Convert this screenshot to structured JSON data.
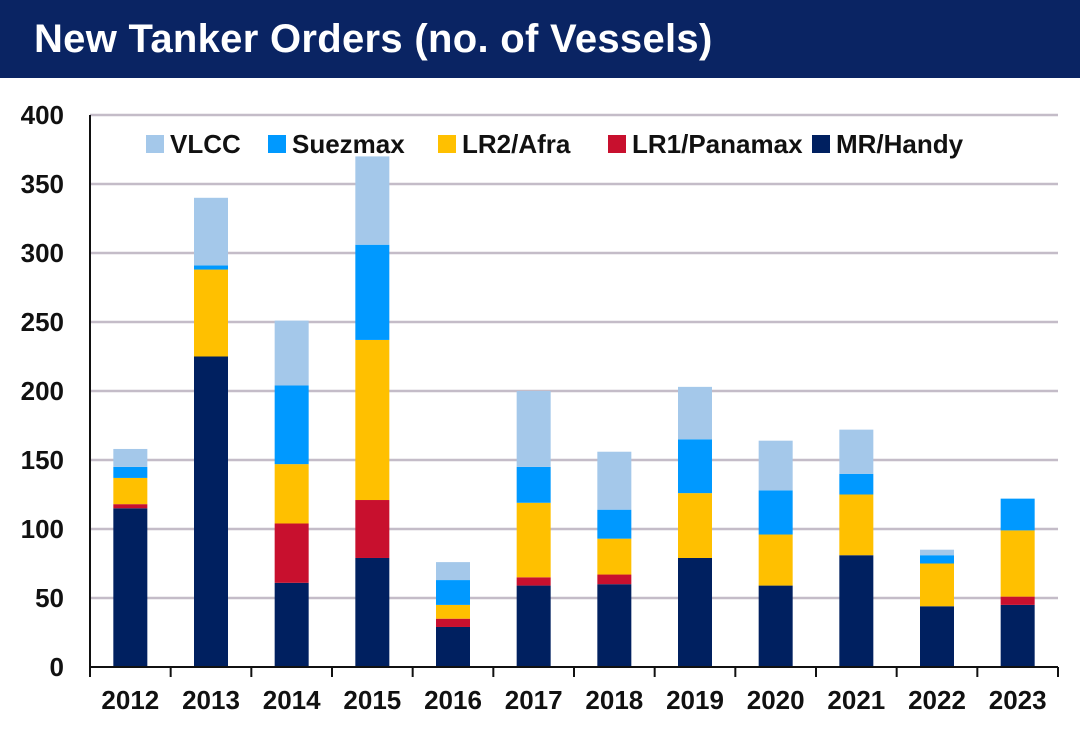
{
  "header": {
    "title": "New Tanker Orders (no. of Vessels)"
  },
  "colors": {
    "title_bg": "#0a2463",
    "gridline": "#c4bcc8",
    "axis": "#111111"
  },
  "chart_data": {
    "type": "bar",
    "stacked": true,
    "title": "New Tanker Orders (no. of Vessels)",
    "xlabel": "",
    "ylabel": "",
    "ylim": [
      0,
      400
    ],
    "yticks": [
      0,
      50,
      100,
      150,
      200,
      250,
      300,
      350,
      400
    ],
    "grid": true,
    "legend_position": "top",
    "categories": [
      "2012",
      "2013",
      "2014",
      "2015",
      "2016",
      "2017",
      "2018",
      "2019",
      "2020",
      "2021",
      "2022",
      "2023"
    ],
    "series": [
      {
        "name": "MR/Handy",
        "color": "#002060",
        "values": [
          115,
          225,
          61,
          79,
          29,
          59,
          60,
          79,
          59,
          81,
          44,
          45
        ]
      },
      {
        "name": "LR1/Panamax",
        "color": "#c8102e",
        "values": [
          3,
          0,
          43,
          42,
          6,
          6,
          7,
          0,
          0,
          0,
          0,
          6
        ]
      },
      {
        "name": "LR2/Afra",
        "color": "#ffc000",
        "values": [
          19,
          63,
          43,
          116,
          10,
          54,
          26,
          47,
          37,
          44,
          31,
          48
        ]
      },
      {
        "name": "Suezmax",
        "color": "#0099ff",
        "values": [
          8,
          3,
          57,
          69,
          18,
          26,
          21,
          39,
          32,
          15,
          6,
          23
        ]
      },
      {
        "name": "VLCC",
        "color": "#a4c8ea",
        "values": [
          13,
          49,
          47,
          64,
          13,
          55,
          42,
          38,
          36,
          32,
          4,
          0
        ]
      }
    ],
    "legend_order": [
      "VLCC",
      "Suezmax",
      "LR2/Afra",
      "LR1/Panamax",
      "MR/Handy"
    ]
  }
}
